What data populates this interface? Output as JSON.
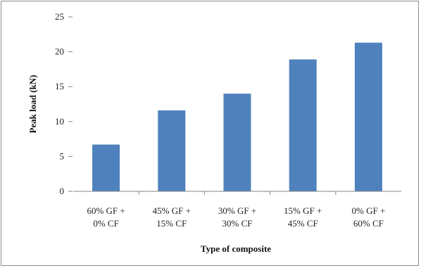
{
  "chart_data": {
    "type": "bar",
    "categories": [
      [
        "60% GF +",
        "0% CF"
      ],
      [
        "45% GF +",
        "15% CF"
      ],
      [
        "30% GF +",
        "30% CF"
      ],
      [
        "15% GF +",
        "45% CF"
      ],
      [
        "0% GF +",
        "60% CF"
      ]
    ],
    "values": [
      6.7,
      11.6,
      14.0,
      18.9,
      21.3
    ],
    "xlabel": "Type of composite",
    "ylabel": "Peak load (kN)",
    "ylim": [
      0,
      25
    ],
    "yticks": [
      "0",
      "5",
      "10",
      "15",
      "20",
      "25"
    ],
    "grid": false,
    "colors": {
      "bar": "#4f81bd",
      "axis": "#868686"
    }
  }
}
